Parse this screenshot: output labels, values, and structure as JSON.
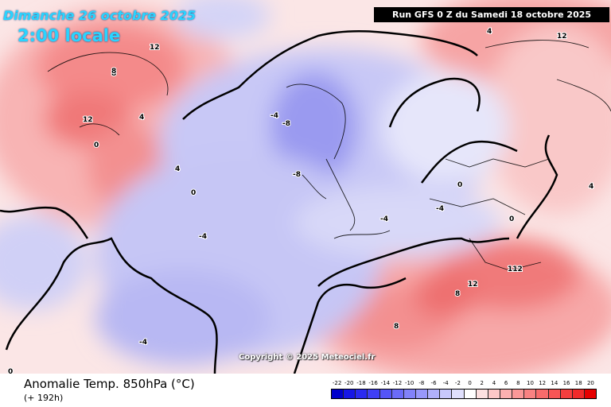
{
  "header": {
    "date": "Dimanche 26 octobre 2025",
    "time": "2:00 locale",
    "run": "Run GFS 0 Z du Samedi 18 octobre 2025"
  },
  "copyright": "Copyright © 2025 Meteociel.fr",
  "footer": {
    "variable": "Anomalie Temp. 850hPa (°C)",
    "lead": "(+ 192h)"
  },
  "legend": {
    "labels": [
      "-22",
      "-20",
      "-18",
      "-16",
      "-14",
      "-12",
      "-10",
      "-8",
      "-6",
      "-4",
      "-2",
      "0",
      "2",
      "4",
      "6",
      "8",
      "10",
      "12",
      "14",
      "16",
      "18",
      "20"
    ],
    "colors": [
      "#0000cc",
      "#1616e6",
      "#2a2af0",
      "#3f3ff5",
      "#5555f7",
      "#6b6bf8",
      "#8282f9",
      "#9898fa",
      "#b0b0fb",
      "#c8c8fc",
      "#e0e0fd",
      "#ffffff",
      "#fde0e0",
      "#fcc8c8",
      "#fbb0b0",
      "#fa9898",
      "#f98282",
      "#f86b6b",
      "#f75555",
      "#f53f3f",
      "#f02a2a",
      "#e60000"
    ]
  },
  "map": {
    "contour_labels": [
      "12",
      "8",
      "4",
      "0",
      "-4",
      "-8",
      "12",
      "4",
      "0",
      "-4",
      "8",
      "12",
      "-4",
      "-8",
      "4",
      "0",
      "8",
      "12",
      "112",
      "4",
      "0",
      "-4",
      "8",
      "0",
      "-4"
    ]
  }
}
